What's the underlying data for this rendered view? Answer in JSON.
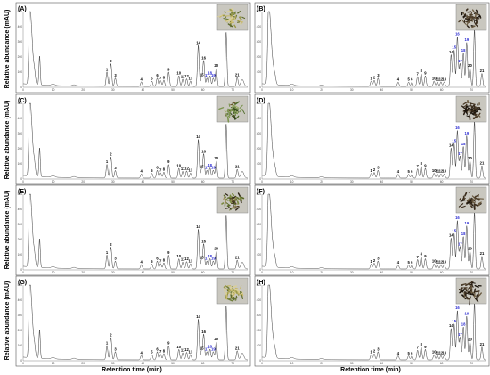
{
  "figure": {
    "ylabel": "Relative abundance (mAU)",
    "xlabel": "Retention time (min)"
  },
  "chart_data": [
    {
      "type": "line",
      "label": "(A)",
      "variant": "left",
      "ylim": [
        0,
        500
      ],
      "yticks": [
        "500",
        "400",
        "300",
        "200",
        "100",
        "0"
      ],
      "xticks": [
        "0",
        "10",
        "20",
        "30",
        "40",
        "50",
        "60",
        "70"
      ],
      "xlim": [
        0,
        75
      ],
      "photo": "dry-yellow-green-herb",
      "peaks": [
        {
          "n": "1",
          "t": 28.0,
          "h": 95
        },
        {
          "n": "2",
          "t": 29.3,
          "h": 150
        },
        {
          "n": "3",
          "t": 30.8,
          "h": 55
        },
        {
          "n": "4",
          "t": 39.5,
          "h": 30
        },
        {
          "n": "5",
          "t": 43.0,
          "h": 35
        },
        {
          "n": "6",
          "t": 44.8,
          "h": 55
        },
        {
          "n": "7",
          "t": 45.9,
          "h": 38
        },
        {
          "n": "8",
          "t": 47.0,
          "h": 42
        },
        {
          "n": "9",
          "t": 48.6,
          "h": 95
        },
        {
          "n": "10",
          "t": 52.0,
          "h": 70
        },
        {
          "n": "11",
          "t": 53.3,
          "h": 48
        },
        {
          "n": "12",
          "t": 54.6,
          "h": 50
        },
        {
          "n": "13",
          "t": 55.9,
          "h": 36
        },
        {
          "n": "14",
          "t": 58.5,
          "h": 270
        },
        {
          "n": "15",
          "t": 59.6,
          "h": 60
        },
        {
          "n": "16",
          "t": 60.3,
          "h": 170
        },
        {
          "n": "17",
          "t": 61.4,
          "h": 55
        },
        {
          "n": "18",
          "t": 62.4,
          "h": 70
        },
        {
          "n": "19",
          "t": 63.5,
          "h": 55
        },
        {
          "n": "20",
          "t": 64.5,
          "h": 120
        },
        {
          "n": "21",
          "t": 71.5,
          "h": 60
        }
      ]
    },
    {
      "type": "line",
      "label": "(B)",
      "variant": "right",
      "ylim": [
        0,
        500
      ],
      "yticks": [
        "500",
        "400",
        "300",
        "200",
        "100",
        "0"
      ],
      "xticks": [
        "0",
        "10",
        "20",
        "30",
        "40",
        "50",
        "60",
        "70"
      ],
      "xlim": [
        0,
        75
      ],
      "photo": "dark-brown-herb",
      "peaks": [
        {
          "n": "1",
          "t": 36.5,
          "h": 35
        },
        {
          "n": "2",
          "t": 37.5,
          "h": 40
        },
        {
          "n": "3",
          "t": 38.8,
          "h": 55
        },
        {
          "n": "4",
          "t": 45.5,
          "h": 28
        },
        {
          "n": "5",
          "t": 49.0,
          "h": 28
        },
        {
          "n": "6",
          "t": 50.1,
          "h": 28
        },
        {
          "n": "7",
          "t": 52.0,
          "h": 65
        },
        {
          "n": "8",
          "t": 53.2,
          "h": 85
        },
        {
          "n": "9",
          "t": 54.6,
          "h": 70
        },
        {
          "n": "10",
          "t": 57.5,
          "h": 35
        },
        {
          "n": "11",
          "t": 58.6,
          "h": 30
        },
        {
          "n": "12",
          "t": 59.8,
          "h": 30
        },
        {
          "n": "13",
          "t": 60.9,
          "h": 30
        },
        {
          "n": "14",
          "t": 63.2,
          "h": 210
        },
        {
          "n": "15",
          "t": 64.2,
          "h": 240
        },
        {
          "n": "16",
          "t": 65.3,
          "h": 330
        },
        {
          "n": "17",
          "t": 66.2,
          "h": 150
        },
        {
          "n": "18",
          "t": 67.3,
          "h": 220
        },
        {
          "n": "19",
          "t": 68.4,
          "h": 290
        },
        {
          "n": "20",
          "t": 69.5,
          "h": 120
        },
        {
          "n": "21",
          "t": 73.5,
          "h": 85
        }
      ]
    },
    {
      "type": "line",
      "label": "(C)",
      "variant": "left",
      "ylim": [
        0,
        500
      ],
      "yticks": [
        "500",
        "400",
        "300",
        "200",
        "100",
        "0"
      ],
      "xticks": [
        "0",
        "10",
        "20",
        "30",
        "40",
        "50",
        "60",
        "70"
      ],
      "xlim": [
        0,
        75
      ],
      "photo": "green-herb",
      "peaks": [
        {
          "n": "1",
          "t": 28.0,
          "h": 90
        },
        {
          "n": "2",
          "t": 29.3,
          "h": 140
        },
        {
          "n": "3",
          "t": 30.8,
          "h": 50
        },
        {
          "n": "4",
          "t": 39.5,
          "h": 28
        },
        {
          "n": "5",
          "t": 43.0,
          "h": 32
        },
        {
          "n": "6",
          "t": 44.8,
          "h": 52
        },
        {
          "n": "7",
          "t": 45.9,
          "h": 35
        },
        {
          "n": "8",
          "t": 47.0,
          "h": 40
        },
        {
          "n": "9",
          "t": 48.6,
          "h": 90
        },
        {
          "n": "10",
          "t": 52.0,
          "h": 65
        },
        {
          "n": "11",
          "t": 53.3,
          "h": 45
        },
        {
          "n": "12",
          "t": 54.6,
          "h": 48
        },
        {
          "n": "13",
          "t": 55.9,
          "h": 34
        },
        {
          "n": "14",
          "t": 58.5,
          "h": 255
        },
        {
          "n": "15",
          "t": 59.6,
          "h": 58
        },
        {
          "n": "16",
          "t": 60.3,
          "h": 160
        },
        {
          "n": "17",
          "t": 61.4,
          "h": 52
        },
        {
          "n": "18",
          "t": 62.4,
          "h": 68
        },
        {
          "n": "19",
          "t": 63.5,
          "h": 52
        },
        {
          "n": "20",
          "t": 64.5,
          "h": 115
        },
        {
          "n": "21",
          "t": 71.5,
          "h": 58
        }
      ]
    },
    {
      "type": "line",
      "label": "(D)",
      "variant": "right",
      "ylim": [
        0,
        500
      ],
      "yticks": [
        "500",
        "400",
        "300",
        "200",
        "100",
        "0"
      ],
      "xticks": [
        "0",
        "10",
        "20",
        "30",
        "40",
        "50",
        "60",
        "70"
      ],
      "xlim": [
        0,
        75
      ],
      "photo": "dark-brown-herb",
      "peaks": [
        {
          "n": "1",
          "t": 36.5,
          "h": 32
        },
        {
          "n": "2",
          "t": 37.5,
          "h": 38
        },
        {
          "n": "3",
          "t": 38.8,
          "h": 52
        },
        {
          "n": "4",
          "t": 45.5,
          "h": 26
        },
        {
          "n": "5",
          "t": 49.0,
          "h": 26
        },
        {
          "n": "6",
          "t": 50.1,
          "h": 26
        },
        {
          "n": "7",
          "t": 52.0,
          "h": 62
        },
        {
          "n": "8",
          "t": 53.2,
          "h": 80
        },
        {
          "n": "9",
          "t": 54.6,
          "h": 66
        },
        {
          "n": "10",
          "t": 57.5,
          "h": 33
        },
        {
          "n": "11",
          "t": 58.6,
          "h": 28
        },
        {
          "n": "12",
          "t": 59.8,
          "h": 28
        },
        {
          "n": "13",
          "t": 60.9,
          "h": 28
        },
        {
          "n": "14",
          "t": 63.2,
          "h": 200
        },
        {
          "n": "15",
          "t": 64.2,
          "h": 230
        },
        {
          "n": "16",
          "t": 65.3,
          "h": 315
        },
        {
          "n": "17",
          "t": 66.2,
          "h": 145
        },
        {
          "n": "18",
          "t": 67.3,
          "h": 210
        },
        {
          "n": "19",
          "t": 68.4,
          "h": 280
        },
        {
          "n": "20",
          "t": 69.5,
          "h": 115
        },
        {
          "n": "21",
          "t": 73.5,
          "h": 82
        }
      ]
    },
    {
      "type": "line",
      "label": "(E)",
      "variant": "left",
      "ylim": [
        0,
        500
      ],
      "yticks": [
        "500",
        "400",
        "300",
        "200",
        "100",
        "0"
      ],
      "xticks": [
        "0",
        "10",
        "20",
        "30",
        "40",
        "50",
        "60",
        "70"
      ],
      "xlim": [
        0,
        75
      ],
      "photo": "mixed-herb",
      "peaks": [
        {
          "n": "1",
          "t": 28.0,
          "h": 92
        },
        {
          "n": "2",
          "t": 29.3,
          "h": 145
        },
        {
          "n": "3",
          "t": 30.8,
          "h": 52
        },
        {
          "n": "4",
          "t": 39.5,
          "h": 29
        },
        {
          "n": "5",
          "t": 43.0,
          "h": 33
        },
        {
          "n": "6",
          "t": 44.8,
          "h": 53
        },
        {
          "n": "7",
          "t": 45.9,
          "h": 36
        },
        {
          "n": "8",
          "t": 47.0,
          "h": 41
        },
        {
          "n": "9",
          "t": 48.6,
          "h": 92
        },
        {
          "n": "10",
          "t": 52.0,
          "h": 67
        },
        {
          "n": "11",
          "t": 53.3,
          "h": 46
        },
        {
          "n": "12",
          "t": 54.6,
          "h": 49
        },
        {
          "n": "13",
          "t": 55.9,
          "h": 35
        },
        {
          "n": "14",
          "t": 58.5,
          "h": 262
        },
        {
          "n": "15",
          "t": 59.6,
          "h": 59
        },
        {
          "n": "16",
          "t": 60.3,
          "h": 165
        },
        {
          "n": "17",
          "t": 61.4,
          "h": 53
        },
        {
          "n": "18",
          "t": 62.4,
          "h": 69
        },
        {
          "n": "19",
          "t": 63.5,
          "h": 53
        },
        {
          "n": "20",
          "t": 64.5,
          "h": 118
        },
        {
          "n": "21",
          "t": 71.5,
          "h": 59
        }
      ]
    },
    {
      "type": "line",
      "label": "(F)",
      "variant": "right",
      "ylim": [
        0,
        500
      ],
      "yticks": [
        "500",
        "400",
        "300",
        "200",
        "100",
        "0"
      ],
      "xticks": [
        "0",
        "10",
        "20",
        "30",
        "40",
        "50",
        "60",
        "70"
      ],
      "xlim": [
        0,
        75
      ],
      "photo": "dark-brown-herb",
      "peaks": [
        {
          "n": "1",
          "t": 36.5,
          "h": 33
        },
        {
          "n": "2",
          "t": 37.5,
          "h": 39
        },
        {
          "n": "3",
          "t": 38.8,
          "h": 53
        },
        {
          "n": "4",
          "t": 45.5,
          "h": 27
        },
        {
          "n": "5",
          "t": 49.0,
          "h": 27
        },
        {
          "n": "6",
          "t": 50.1,
          "h": 27
        },
        {
          "n": "7",
          "t": 52.0,
          "h": 63
        },
        {
          "n": "8",
          "t": 53.2,
          "h": 82
        },
        {
          "n": "9",
          "t": 54.6,
          "h": 68
        },
        {
          "n": "10",
          "t": 57.5,
          "h": 34
        },
        {
          "n": "11",
          "t": 58.6,
          "h": 29
        },
        {
          "n": "12",
          "t": 59.8,
          "h": 29
        },
        {
          "n": "13",
          "t": 60.9,
          "h": 29
        },
        {
          "n": "14",
          "t": 63.2,
          "h": 205
        },
        {
          "n": "15",
          "t": 64.2,
          "h": 235
        },
        {
          "n": "16",
          "t": 65.3,
          "h": 320
        },
        {
          "n": "17",
          "t": 66.2,
          "h": 148
        },
        {
          "n": "18",
          "t": 67.3,
          "h": 215
        },
        {
          "n": "19",
          "t": 68.4,
          "h": 285
        },
        {
          "n": "20",
          "t": 69.5,
          "h": 118
        },
        {
          "n": "21",
          "t": 73.5,
          "h": 84
        }
      ]
    },
    {
      "type": "line",
      "label": "(G)",
      "variant": "left",
      "ylim": [
        0,
        500
      ],
      "yticks": [
        "500",
        "400",
        "300",
        "200",
        "100",
        "0"
      ],
      "xticks": [
        "0",
        "10",
        "20",
        "30",
        "40",
        "50",
        "60",
        "70"
      ],
      "xlim": [
        0,
        75
      ],
      "photo": "dry-yellow-green-herb",
      "peaks": [
        {
          "n": "1",
          "t": 28.0,
          "h": 94
        },
        {
          "n": "2",
          "t": 29.3,
          "h": 148
        },
        {
          "n": "3",
          "t": 30.8,
          "h": 54
        },
        {
          "n": "4",
          "t": 39.5,
          "h": 30
        },
        {
          "n": "5",
          "t": 43.0,
          "h": 34
        },
        {
          "n": "6",
          "t": 44.8,
          "h": 54
        },
        {
          "n": "7",
          "t": 45.9,
          "h": 37
        },
        {
          "n": "8",
          "t": 47.0,
          "h": 42
        },
        {
          "n": "9",
          "t": 48.6,
          "h": 94
        },
        {
          "n": "10",
          "t": 52.0,
          "h": 69
        },
        {
          "n": "11",
          "t": 53.3,
          "h": 47
        },
        {
          "n": "12",
          "t": 54.6,
          "h": 50
        },
        {
          "n": "13",
          "t": 55.9,
          "h": 36
        },
        {
          "n": "14",
          "t": 58.5,
          "h": 268
        },
        {
          "n": "15",
          "t": 59.6,
          "h": 60
        },
        {
          "n": "16",
          "t": 60.3,
          "h": 168
        },
        {
          "n": "17",
          "t": 61.4,
          "h": 54
        },
        {
          "n": "18",
          "t": 62.4,
          "h": 70
        },
        {
          "n": "19",
          "t": 63.5,
          "h": 54
        },
        {
          "n": "20",
          "t": 64.5,
          "h": 120
        },
        {
          "n": "21",
          "t": 71.5,
          "h": 60
        }
      ]
    },
    {
      "type": "line",
      "label": "(H)",
      "variant": "right",
      "ylim": [
        0,
        500
      ],
      "yticks": [
        "500",
        "400",
        "300",
        "200",
        "100",
        "0"
      ],
      "xticks": [
        "0",
        "10",
        "20",
        "30",
        "40",
        "50",
        "60",
        "70"
      ],
      "xlim": [
        0,
        75
      ],
      "photo": "dark-brown-herb",
      "peaks": [
        {
          "n": "1",
          "t": 36.5,
          "h": 34
        },
        {
          "n": "2",
          "t": 37.5,
          "h": 40
        },
        {
          "n": "3",
          "t": 38.8,
          "h": 54
        },
        {
          "n": "4",
          "t": 45.5,
          "h": 27
        },
        {
          "n": "5",
          "t": 49.0,
          "h": 27
        },
        {
          "n": "6",
          "t": 50.1,
          "h": 27
        },
        {
          "n": "7",
          "t": 52.0,
          "h": 64
        },
        {
          "n": "8",
          "t": 53.2,
          "h": 84
        },
        {
          "n": "9",
          "t": 54.6,
          "h": 69
        },
        {
          "n": "10",
          "t": 57.5,
          "h": 34
        },
        {
          "n": "11",
          "t": 58.6,
          "h": 29
        },
        {
          "n": "12",
          "t": 59.8,
          "h": 29
        },
        {
          "n": "13",
          "t": 60.9,
          "h": 29
        },
        {
          "n": "14",
          "t": 63.2,
          "h": 208
        },
        {
          "n": "15",
          "t": 64.2,
          "h": 238
        },
        {
          "n": "16",
          "t": 65.3,
          "h": 325
        },
        {
          "n": "17",
          "t": 66.2,
          "h": 149
        },
        {
          "n": "18",
          "t": 67.3,
          "h": 218
        },
        {
          "n": "19",
          "t": 68.4,
          "h": 288
        },
        {
          "n": "20",
          "t": 69.5,
          "h": 119
        },
        {
          "n": "21",
          "t": 73.5,
          "h": 85
        }
      ]
    }
  ],
  "colors": {
    "trace": "#222222",
    "label_black": "#000000",
    "label_blue": "#2a2ad0",
    "frame": "#555555"
  }
}
